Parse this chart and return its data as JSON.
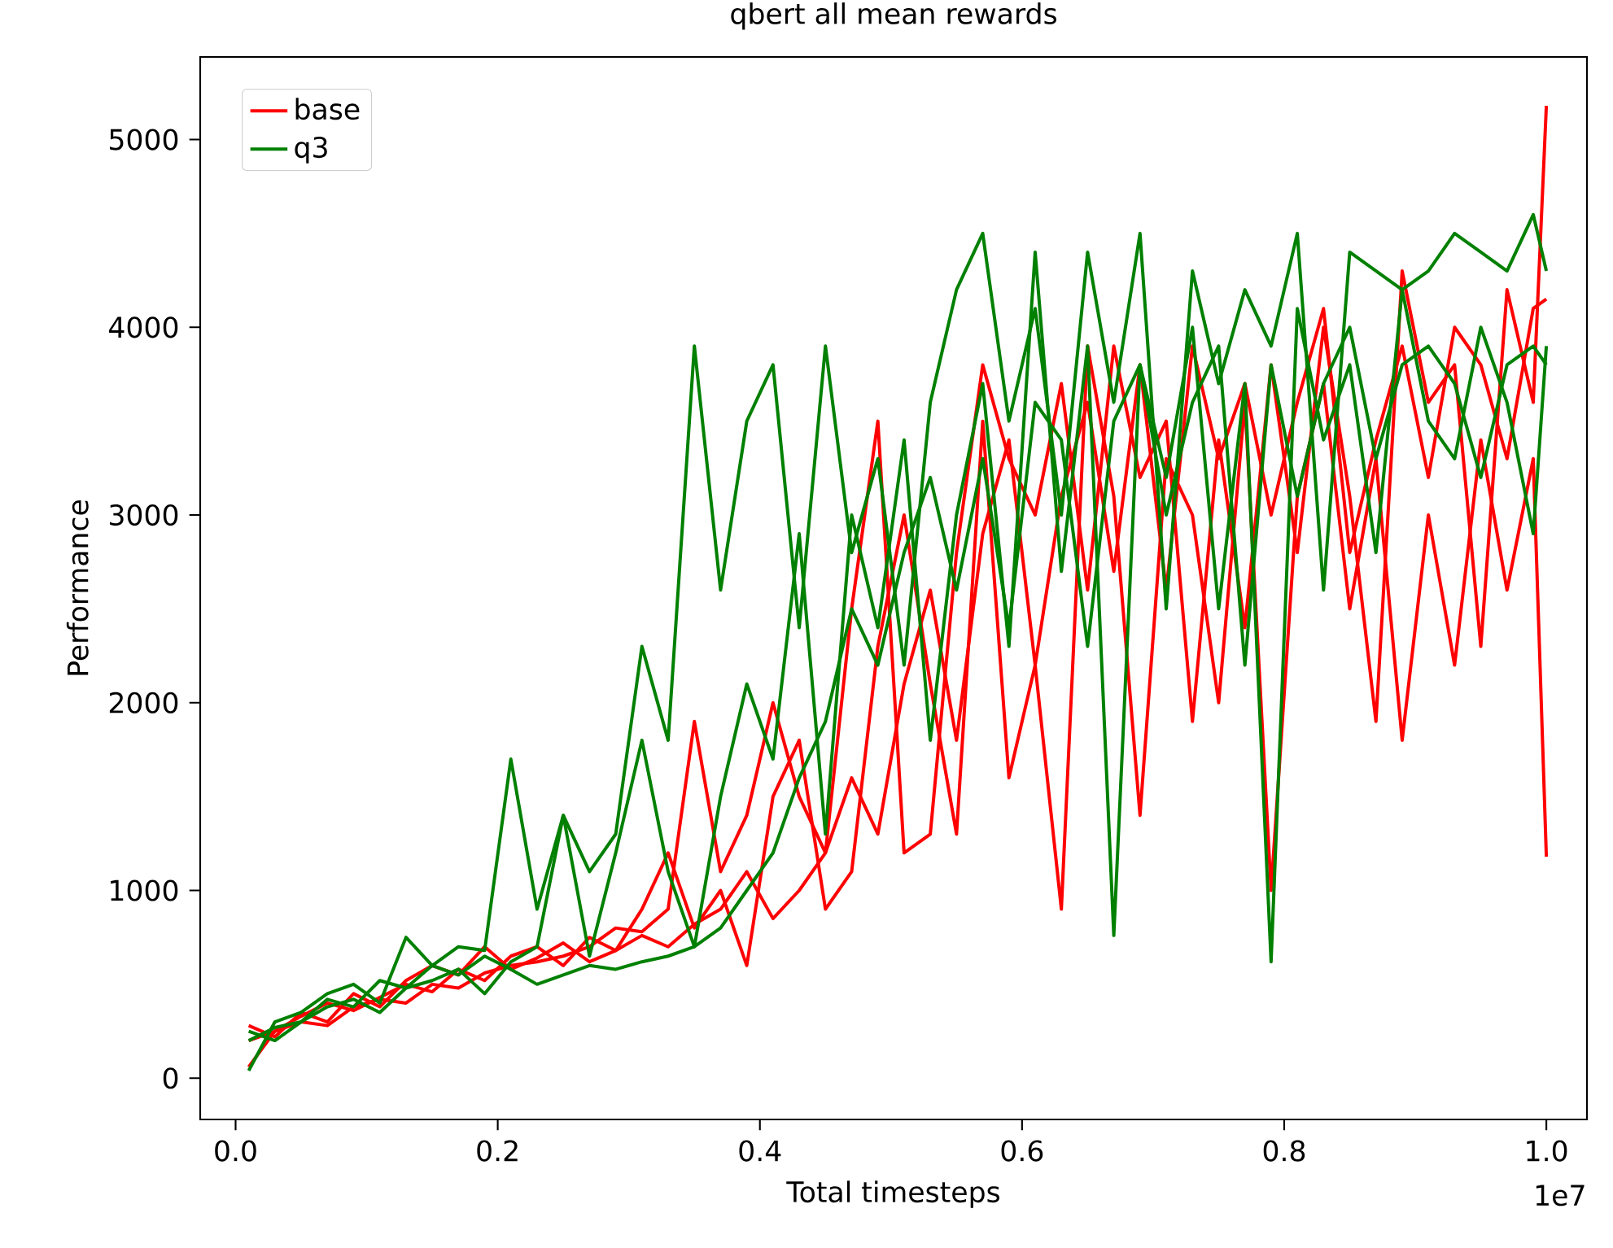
{
  "chart_data": {
    "type": "line",
    "title": "qbert all mean rewards",
    "xlabel": "Total timesteps",
    "ylabel": "Performance",
    "x": [
      0.01,
      0.03,
      0.05,
      0.07,
      0.09,
      0.11,
      0.13,
      0.15,
      0.17,
      0.19,
      0.21,
      0.23,
      0.25,
      0.27,
      0.29,
      0.31,
      0.33,
      0.35,
      0.37,
      0.39,
      0.41,
      0.43,
      0.45,
      0.47,
      0.49,
      0.51,
      0.53,
      0.55,
      0.57,
      0.59,
      0.61,
      0.63,
      0.65,
      0.67,
      0.69,
      0.71,
      0.73,
      0.75,
      0.77,
      0.79,
      0.81,
      0.83,
      0.85,
      0.87,
      0.89,
      0.91,
      0.93,
      0.95,
      0.97,
      0.99,
      1.0
    ],
    "series": [
      {
        "name": "base",
        "color": "#ff0000",
        "values": [
          60,
          250,
          300,
          280,
          380,
          420,
          400,
          500,
          480,
          560,
          600,
          620,
          650,
          700,
          800,
          780,
          900,
          1900,
          1100,
          1400,
          2000,
          1500,
          1200,
          2500,
          3500,
          1200,
          1300,
          2800,
          3800,
          3300,
          3000,
          3700,
          2600,
          3900,
          3200,
          3500,
          1900,
          3400,
          2400,
          3800,
          2800,
          4000,
          3100,
          1900,
          4300,
          3600,
          3800,
          2300,
          4200,
          3600,
          5180
        ]
      },
      {
        "color": "#ff0000",
        "values": [
          200,
          250,
          330,
          400,
          360,
          430,
          500,
          460,
          580,
          520,
          650,
          700,
          600,
          750,
          680,
          900,
          1200,
          800,
          1000,
          600,
          1500,
          1800,
          900,
          1100,
          2300,
          3000,
          2100,
          1300,
          3500,
          1600,
          2200,
          900,
          3900,
          3100,
          1400,
          3300,
          3000,
          2000,
          3600,
          1000,
          3100,
          3700,
          2500,
          3300,
          1800,
          3000,
          2200,
          3400,
          2600,
          3300,
          1180
        ]
      },
      {
        "color": "#ff0000",
        "values": [
          280,
          220,
          350,
          300,
          450,
          380,
          520,
          600,
          550,
          700,
          580,
          640,
          720,
          620,
          680,
          760,
          700,
          820,
          900,
          1100,
          850,
          1000,
          1200,
          1600,
          1300,
          2100,
          2600,
          1800,
          2900,
          3400,
          2200,
          3100,
          3600,
          2700,
          3800,
          2600,
          3900,
          3300,
          3700,
          3000,
          3600,
          4100,
          2800,
          3400,
          3900,
          3200,
          4000,
          3800,
          3300,
          4100,
          4150
        ]
      },
      {
        "name": "q3",
        "color": "#008000",
        "values": [
          40,
          300,
          350,
          450,
          500,
          400,
          750,
          600,
          700,
          680,
          1700,
          900,
          1400,
          1100,
          1300,
          2300,
          1800,
          3900,
          2600,
          3500,
          3800,
          2400,
          3900,
          2800,
          3300,
          2200,
          3600,
          4200,
          4500,
          3500,
          4100,
          3000,
          4400,
          3600,
          4500,
          2500,
          4300,
          3700,
          4200,
          3900,
          4500,
          2600,
          4400,
          4300,
          4200,
          4300,
          4500,
          4400,
          4300,
          4600,
          4300
        ]
      },
      {
        "color": "#008000",
        "values": [
          200,
          270,
          300,
          380,
          420,
          350,
          480,
          520,
          580,
          450,
          620,
          700,
          1400,
          650,
          1200,
          1800,
          1100,
          700,
          1500,
          2100,
          1700,
          2900,
          1300,
          3000,
          2400,
          3400,
          1800,
          3000,
          3700,
          2300,
          4400,
          2700,
          3900,
          760,
          3800,
          3200,
          4000,
          2500,
          3700,
          620,
          4100,
          3400,
          3800,
          2800,
          4200,
          3500,
          3300,
          4000,
          3600,
          2900,
          3900
        ]
      },
      {
        "color": "#008000",
        "values": [
          250,
          200,
          300,
          420,
          380,
          520,
          480,
          600,
          550,
          650,
          580,
          500,
          550,
          600,
          580,
          620,
          650,
          700,
          800,
          1000,
          1200,
          1600,
          1900,
          2500,
          2200,
          2800,
          3200,
          2600,
          3300,
          2400,
          3600,
          3400,
          2300,
          3500,
          3800,
          3000,
          3600,
          3900,
          2200,
          3800,
          3100,
          3700,
          4000,
          3300,
          3800,
          3900,
          3700,
          3200,
          3800,
          3900,
          3800
        ]
      }
    ],
    "xlim": [
      -0.027,
      1.031
    ],
    "ylim": [
      -220,
      5440
    ],
    "xticks": [
      {
        "value": 0,
        "label": "0.0"
      },
      0.2,
      0.4,
      0.6,
      0.8,
      {
        "value": 1,
        "label": "1.0"
      }
    ],
    "yticks": [
      0,
      1000,
      2000,
      3000,
      4000,
      5000
    ],
    "annotations": [
      "1e7"
    ],
    "legend": "top left",
    "grid": false,
    "line_style": "solid",
    "marker": "none"
  }
}
